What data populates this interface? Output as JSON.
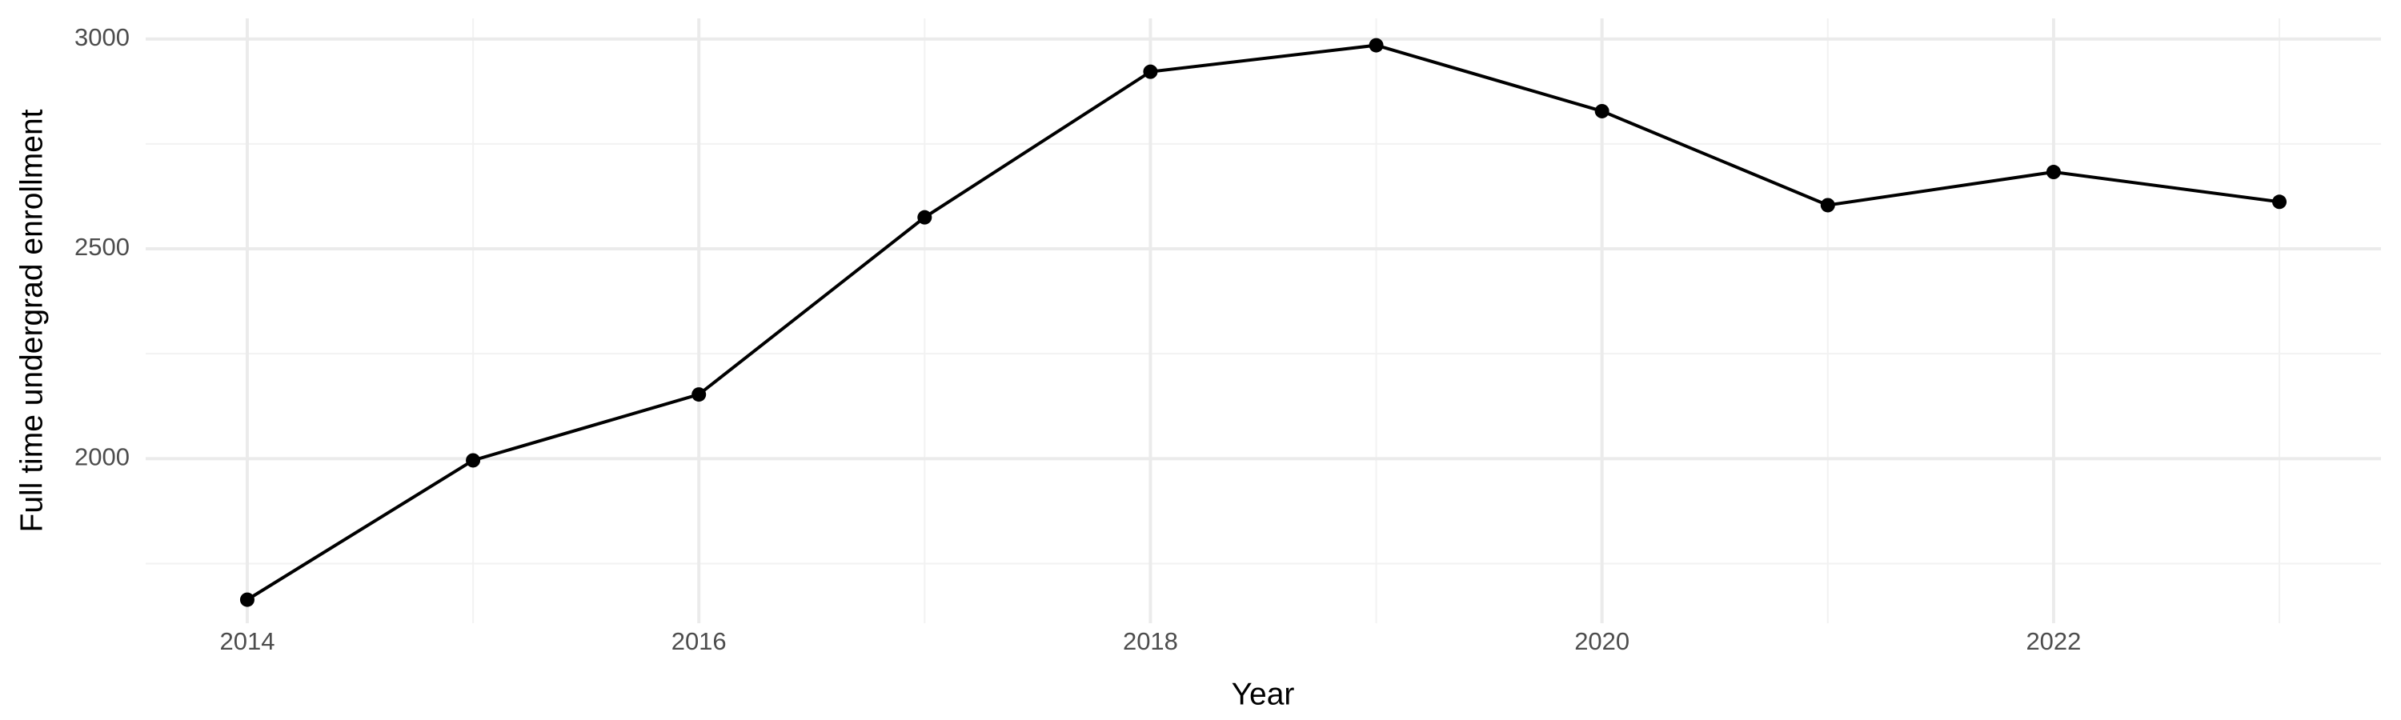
{
  "chart_data": {
    "type": "line",
    "x_label": "Year",
    "y_label": "Full time undergrad enrollment",
    "x": [
      2014,
      2015,
      2016,
      2017,
      2018,
      2019,
      2020,
      2021,
      2022,
      2023
    ],
    "series": [
      {
        "color": "#000000",
        "values": [
          1664,
          1996,
          2153,
          2575,
          2922,
          2985,
          2828,
          2604,
          2683,
          2612
        ]
      }
    ],
    "xlim": [
      2013.55,
      2023.45
    ],
    "xticks": [
      2014,
      2016,
      2018,
      2020,
      2022
    ],
    "minor_xticks": [
      2015,
      2017,
      2019,
      2021,
      2023
    ],
    "ylim": [
      1608,
      3049
    ],
    "yticks": [
      2000,
      2500,
      3000
    ],
    "minor_yticks": [
      1750,
      2250,
      2750
    ],
    "grid": true
  }
}
